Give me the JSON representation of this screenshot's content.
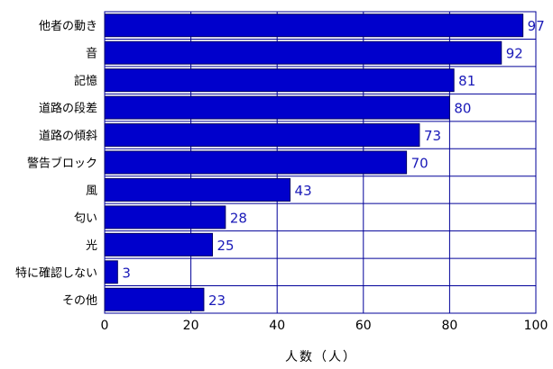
{
  "chart_data": {
    "type": "bar",
    "orientation": "horizontal",
    "categories": [
      "他者の動き",
      "音",
      "記憶",
      "道路の段差",
      "道路の傾斜",
      "警告ブロック",
      "風",
      "匂い",
      "光",
      "特に確認しない",
      "その他"
    ],
    "values": [
      97,
      92,
      81,
      80,
      73,
      70,
      43,
      28,
      25,
      3,
      23
    ],
    "xlabel": "人数（人）",
    "xlim": [
      0,
      100
    ],
    "xticks": [
      0,
      20,
      40,
      60,
      80,
      100
    ],
    "grid": true,
    "colors": {
      "bar": "#0000cc",
      "bar_edge": "#000066",
      "value_label": "#1a1ab8",
      "grid": "#000099"
    }
  }
}
